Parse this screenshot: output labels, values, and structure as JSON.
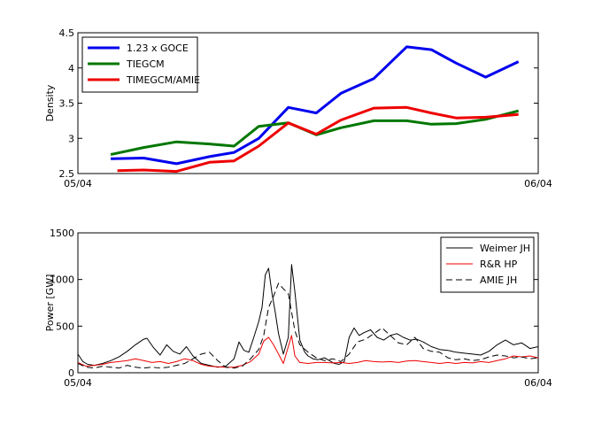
{
  "chart_data": [
    {
      "type": "line",
      "title": "",
      "xlabel": "",
      "ylabel": "Density",
      "xlim": [
        0,
        28
      ],
      "ylim": [
        2.5,
        4.5
      ],
      "xtick_labels": [
        "05/04",
        "06/04"
      ],
      "ytick_values": [
        2.5,
        3,
        3.5,
        4,
        4.5
      ],
      "ytick_labels": [
        "2.5",
        "3",
        "3.5",
        "4",
        "4.5"
      ],
      "legend_position": "top-left",
      "x": [
        2,
        4,
        6,
        8,
        10,
        12,
        14,
        16,
        18,
        20,
        22,
        24,
        26,
        28
      ],
      "series": [
        {
          "name": "1.23 x GOCE",
          "color": "#0000ee",
          "x": [
            2,
            4,
            6,
            8,
            9.5,
            11,
            12.8,
            14.5,
            16,
            18,
            20,
            21.5,
            23,
            24.8,
            26.8
          ],
          "values": [
            2.71,
            2.72,
            2.64,
            2.74,
            2.8,
            3.0,
            3.44,
            3.36,
            3.64,
            3.85,
            4.3,
            4.26,
            4.07,
            3.87,
            4.09
          ]
        },
        {
          "name": "TIEGCM",
          "color": "#007700",
          "x": [
            2,
            4,
            6,
            8,
            9.5,
            11,
            12.8,
            14.5,
            16,
            18,
            20,
            21.5,
            23,
            24.8,
            26.8
          ],
          "values": [
            2.77,
            2.87,
            2.95,
            2.92,
            2.89,
            3.17,
            3.22,
            3.05,
            3.15,
            3.25,
            3.25,
            3.2,
            3.21,
            3.27,
            3.39
          ]
        },
        {
          "name": "TIMEGCM/AMIE",
          "color": "#ee0000",
          "x": [
            2.4,
            4,
            6,
            8,
            9.5,
            11,
            12.8,
            14.5,
            16,
            18,
            20,
            21.5,
            23,
            24.8,
            26.8
          ],
          "values": [
            2.54,
            2.55,
            2.53,
            2.66,
            2.68,
            2.89,
            3.22,
            3.06,
            3.26,
            3.43,
            3.44,
            3.36,
            3.29,
            3.3,
            3.34
          ]
        }
      ]
    },
    {
      "type": "line",
      "title": "",
      "xlabel": "",
      "ylabel": "Power [GW]",
      "xlim": [
        0,
        28
      ],
      "ylim": [
        0,
        1500
      ],
      "xtick_labels": [
        "05/04",
        "06/04"
      ],
      "ytick_values": [
        0,
        500,
        1000,
        1500
      ],
      "ytick_labels": [
        "0",
        "500",
        "1000",
        "1500"
      ],
      "legend_position": "top-right",
      "series": [
        {
          "name": "Weimer JH",
          "color": "#000000",
          "dash": "solid",
          "x": [
            0,
            0.3,
            0.6,
            1,
            1.5,
            2,
            2.5,
            3,
            3.5,
            4,
            4.2,
            4.6,
            5,
            5.4,
            5.8,
            6.2,
            6.6,
            7,
            7.5,
            8,
            8.5,
            9,
            9.5,
            9.8,
            10.1,
            10.4,
            10.7,
            11,
            11.2,
            11.4,
            11.6,
            11.8,
            12,
            12.2,
            12.5,
            12.8,
            13,
            13.2,
            13.5,
            13.8,
            14,
            14.3,
            14.6,
            15,
            15.3,
            15.6,
            15.9,
            16.2,
            16.5,
            16.8,
            17.1,
            17.4,
            17.8,
            18.2,
            18.6,
            19,
            19.4,
            19.8,
            20.2,
            20.6,
            21,
            21.5,
            22,
            22.5,
            23,
            23.5,
            24,
            24.5,
            25,
            25.5,
            26,
            26.5,
            27,
            27.5,
            28
          ],
          "values": [
            200,
            120,
            90,
            80,
            100,
            130,
            170,
            230,
            300,
            360,
            370,
            270,
            190,
            300,
            230,
            200,
            280,
            180,
            100,
            80,
            60,
            70,
            150,
            330,
            240,
            220,
            380,
            550,
            700,
            1050,
            1120,
            860,
            650,
            420,
            200,
            380,
            1160,
            870,
            350,
            220,
            180,
            150,
            140,
            160,
            130,
            100,
            90,
            120,
            380,
            480,
            400,
            430,
            460,
            380,
            350,
            400,
            420,
            380,
            350,
            360,
            330,
            280,
            250,
            240,
            220,
            210,
            200,
            190,
            230,
            300,
            350,
            300,
            320,
            260,
            280
          ]
        },
        {
          "name": "R&R HP",
          "color": "#ee0000",
          "dash": "solid",
          "x": [
            0,
            0.5,
            1,
            1.5,
            2,
            2.5,
            3,
            3.5,
            4,
            4.5,
            5,
            5.5,
            6,
            6.5,
            7,
            7.5,
            8,
            8.5,
            9,
            9.5,
            10,
            10.5,
            11,
            11.3,
            11.6,
            11.9,
            12.2,
            12.5,
            12.8,
            13,
            13.2,
            13.5,
            14,
            14.5,
            15,
            15.5,
            16,
            16.5,
            17,
            17.5,
            18,
            18.5,
            19,
            19.5,
            20,
            20.5,
            21,
            21.5,
            22,
            22.5,
            23,
            23.5,
            24,
            24.5,
            25,
            25.5,
            26,
            26.5,
            27,
            27.5,
            28
          ],
          "values": [
            110,
            70,
            80,
            90,
            110,
            120,
            130,
            150,
            130,
            110,
            120,
            100,
            120,
            150,
            130,
            90,
            70,
            65,
            60,
            60,
            80,
            120,
            200,
            340,
            380,
            300,
            200,
            100,
            280,
            400,
            180,
            110,
            100,
            110,
            110,
            105,
            110,
            100,
            110,
            130,
            120,
            115,
            120,
            110,
            125,
            130,
            120,
            110,
            100,
            110,
            100,
            110,
            105,
            120,
            110,
            130,
            150,
            180,
            170,
            180,
            160
          ]
        },
        {
          "name": "AMIE JH",
          "color": "#000000",
          "dash": "dashed",
          "x": [
            0,
            0.5,
            1,
            1.5,
            2,
            2.5,
            3,
            3.5,
            4,
            4.5,
            5,
            5.5,
            6,
            6.5,
            7,
            7.5,
            8,
            8.5,
            9,
            9.5,
            10,
            10.5,
            11,
            11.3,
            11.6,
            11.9,
            12.2,
            12.5,
            12.8,
            13,
            13.2,
            13.5,
            14,
            14.5,
            15,
            15.5,
            16,
            16.5,
            17,
            17.5,
            18,
            18.5,
            19,
            19.5,
            20,
            20.5,
            21,
            21.5,
            22,
            22.5,
            23,
            23.5,
            24,
            24.5,
            25,
            25.5,
            26,
            26.5,
            27,
            27.5,
            28
          ],
          "values": [
            100,
            60,
            50,
            70,
            60,
            50,
            80,
            60,
            50,
            60,
            50,
            60,
            80,
            100,
            150,
            200,
            220,
            130,
            60,
            50,
            70,
            150,
            250,
            400,
            700,
            820,
            960,
            900,
            850,
            650,
            450,
            300,
            220,
            160,
            130,
            150,
            120,
            200,
            330,
            360,
            420,
            480,
            400,
            320,
            300,
            380,
            260,
            230,
            220,
            160,
            140,
            150,
            130,
            140,
            170,
            190,
            180,
            160,
            170,
            150,
            160
          ]
        }
      ]
    }
  ]
}
